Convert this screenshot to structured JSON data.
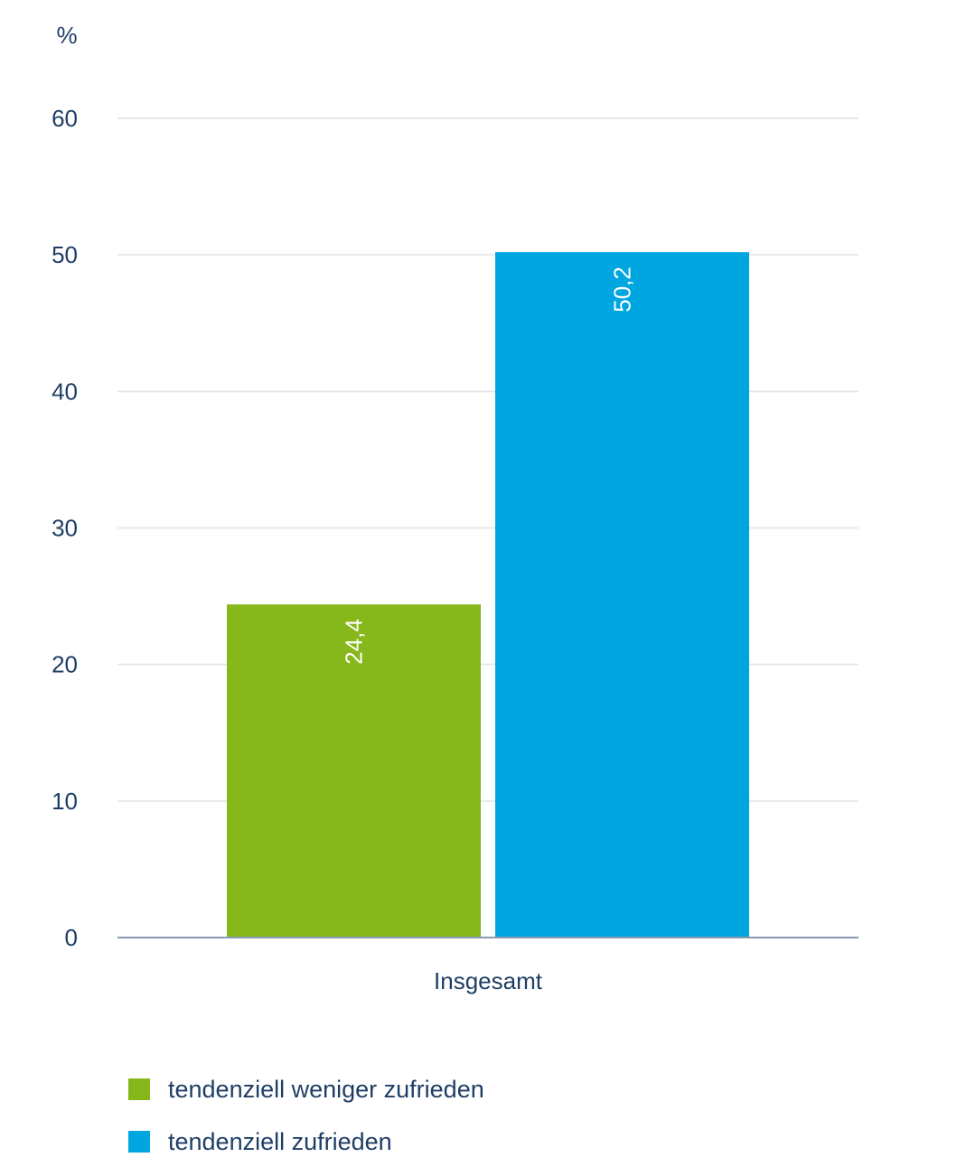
{
  "chart_data": {
    "type": "bar",
    "unit_label": "%",
    "categories": [
      "Insgesamt"
    ],
    "series": [
      {
        "name": "tendenziell weniger zufrieden",
        "values": [
          24.4
        ],
        "labels": [
          "24,4"
        ],
        "color": "#86b81b"
      },
      {
        "name": "tendenziell zufrieden",
        "values": [
          50.2
        ],
        "labels": [
          "50,2"
        ],
        "color": "#00a6df"
      }
    ],
    "ylim": [
      0,
      60
    ],
    "yticks": [
      0,
      10,
      20,
      30,
      40,
      50,
      60
    ],
    "grid": true,
    "legend_position": "bottom-left",
    "colors": {
      "text": "#1f3e66",
      "grid": "#e6e8ea",
      "axis": "#8a9bb0"
    }
  }
}
